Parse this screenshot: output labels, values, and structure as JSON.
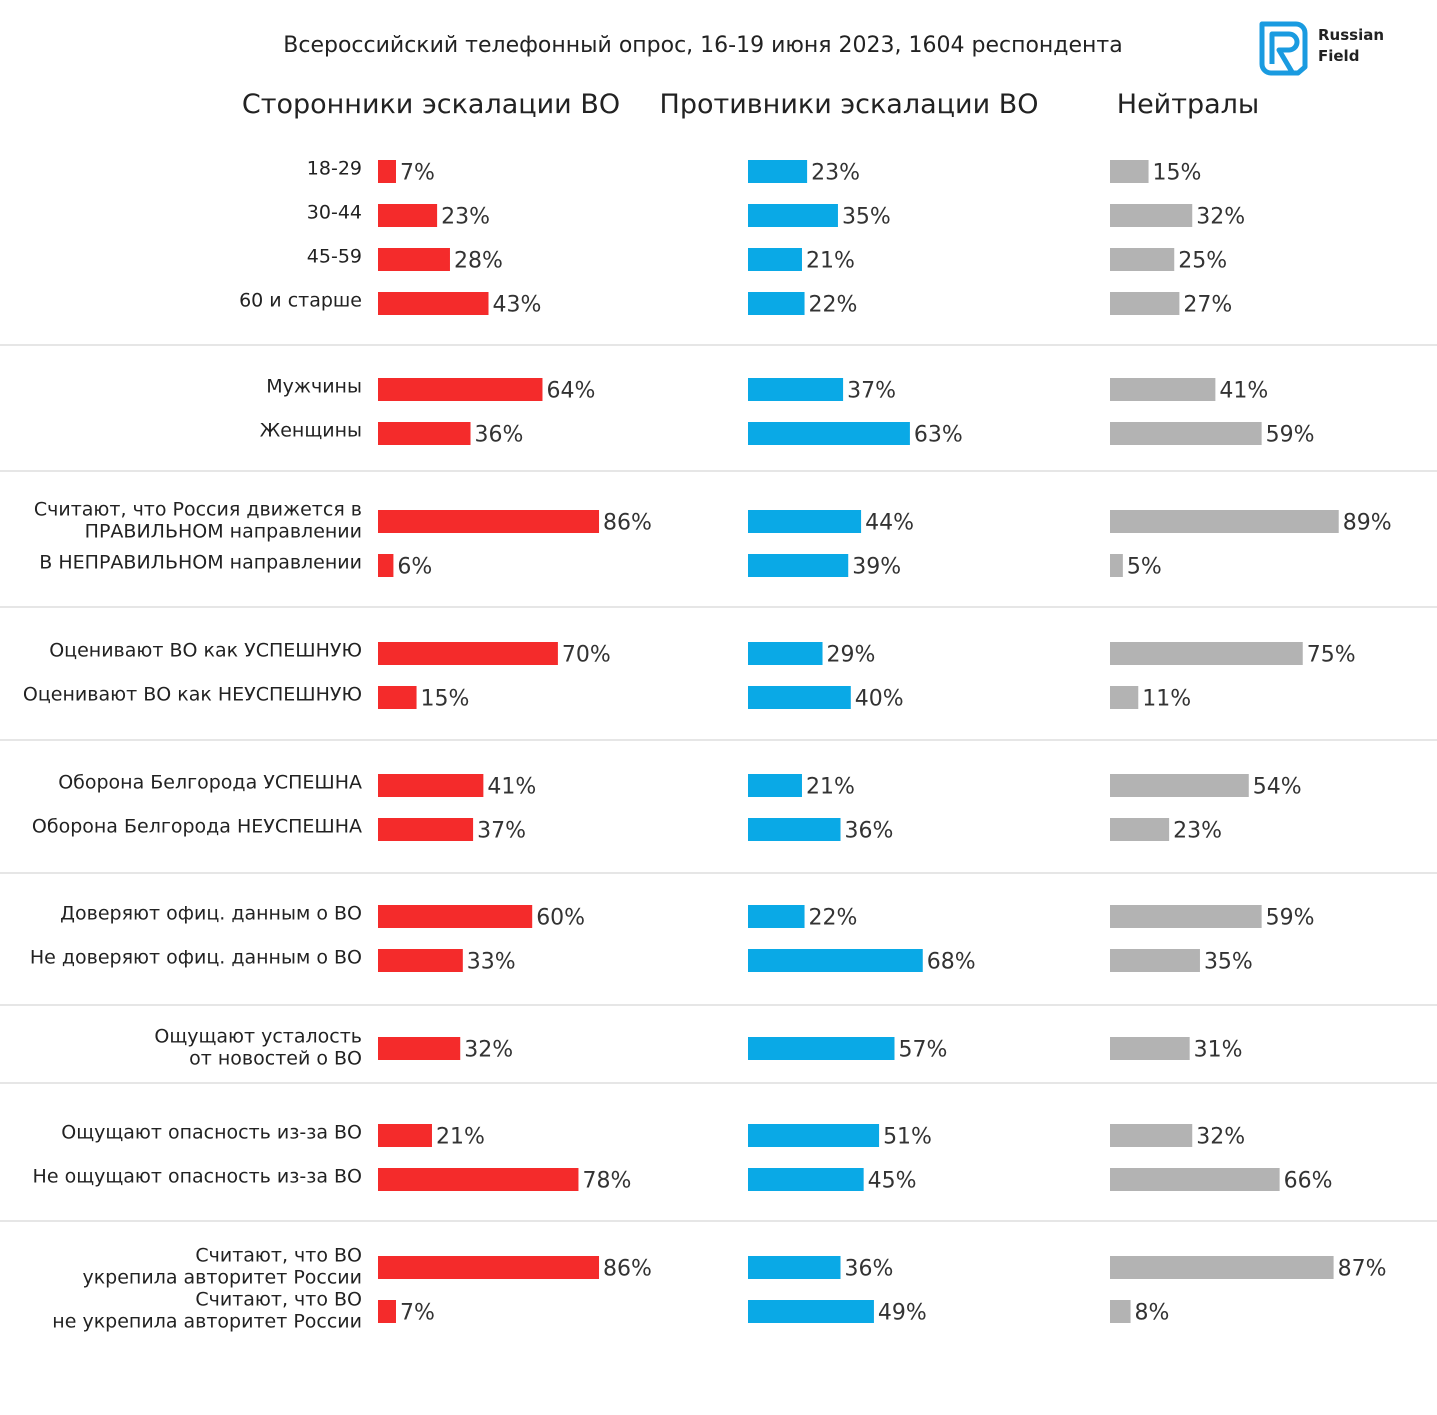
{
  "chart_data": {
    "type": "bar",
    "orientation": "horizontal",
    "title": "Всероссийский телефонный опрос, 16-19 июня 2023, 1604 респондента",
    "unit": "%",
    "xlim": [
      0,
      100
    ],
    "grid": false,
    "legend": "none",
    "brand": {
      "name_line1": "Russian",
      "name_line2": "Field",
      "color": "#1a9be0"
    },
    "series": [
      {
        "name": "Сторонники эскалации ВО",
        "color": "#f42b2b"
      },
      {
        "name": "Противники эскалации ВО",
        "color": "#0aa9e6"
      },
      {
        "name": "Нейтралы",
        "color": "#b3b3b3"
      }
    ],
    "groups": [
      {
        "rows": [
          {
            "label": [
              "18-29"
            ],
            "values": [
              7,
              23,
              15
            ]
          },
          {
            "label": [
              "30-44"
            ],
            "values": [
              23,
              35,
              32
            ]
          },
          {
            "label": [
              "45-59"
            ],
            "values": [
              28,
              21,
              25
            ]
          },
          {
            "label": [
              "60 и старше"
            ],
            "values": [
              43,
              22,
              27
            ]
          }
        ]
      },
      {
        "rows": [
          {
            "label": [
              "Мужчины"
            ],
            "values": [
              64,
              37,
              41
            ]
          },
          {
            "label": [
              "Женщины"
            ],
            "values": [
              36,
              63,
              59
            ]
          }
        ]
      },
      {
        "rows": [
          {
            "label": [
              "Считают, что Россия движется в",
              "ПРАВИЛЬНОМ направлении"
            ],
            "values": [
              86,
              44,
              89
            ]
          },
          {
            "label": [
              "В НЕПРАВИЛЬНОМ направлении"
            ],
            "values": [
              6,
              39,
              5
            ]
          }
        ]
      },
      {
        "rows": [
          {
            "label": [
              "Оценивают ВО как УСПЕШНУЮ"
            ],
            "values": [
              70,
              29,
              75
            ]
          },
          {
            "label": [
              "Оценивают ВО как НЕУСПЕШНУЮ"
            ],
            "values": [
              15,
              40,
              11
            ]
          }
        ]
      },
      {
        "rows": [
          {
            "label": [
              "Оборона Белгорода УСПЕШНА"
            ],
            "values": [
              41,
              21,
              54
            ]
          },
          {
            "label": [
              "Оборона Белгорода НЕУСПЕШНА"
            ],
            "values": [
              37,
              36,
              23
            ]
          }
        ]
      },
      {
        "rows": [
          {
            "label": [
              "Доверяют офиц. данным о ВО"
            ],
            "values": [
              60,
              22,
              59
            ]
          },
          {
            "label": [
              "Не доверяют офиц. данным о ВО"
            ],
            "values": [
              33,
              68,
              35
            ]
          }
        ]
      },
      {
        "rows": [
          {
            "label": [
              "Ощущают усталость",
              "от новостей о ВО"
            ],
            "values": [
              32,
              57,
              31
            ]
          }
        ]
      },
      {
        "rows": [
          {
            "label": [
              "Ощущают опасность из-за ВО"
            ],
            "values": [
              21,
              51,
              32
            ]
          },
          {
            "label": [
              "Не ощущают опасность из-за ВО"
            ],
            "values": [
              78,
              45,
              66
            ]
          }
        ]
      },
      {
        "rows": [
          {
            "label": [
              "Считают, что ВО",
              "укрепила авторитет России"
            ],
            "values": [
              86,
              36,
              87
            ]
          },
          {
            "label": [
              "Считают, что ВО",
              "не укрепила авторитет России"
            ],
            "values": [
              7,
              49,
              8
            ]
          }
        ]
      }
    ]
  }
}
